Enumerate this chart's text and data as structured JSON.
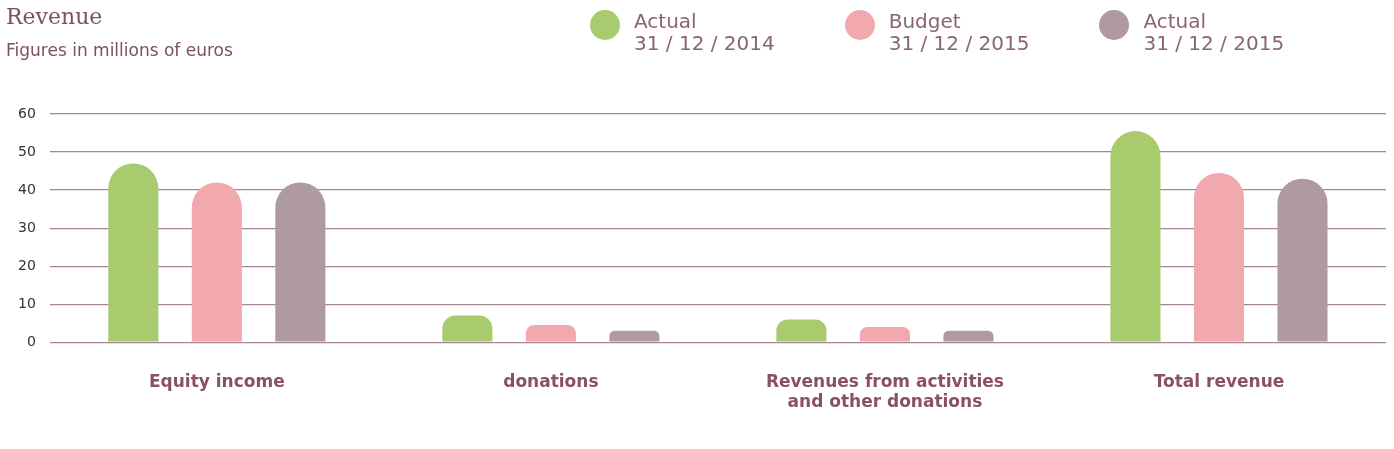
{
  "chart_data": {
    "type": "bar",
    "title": "Revenue",
    "subtitle": "Figures in millions of euros",
    "categories": [
      "Equity income",
      "donations",
      "Revenues from activities and other donations",
      "Total revenue"
    ],
    "series": [
      {
        "name": "Actual\n31 / 12 / 2014",
        "color": "#a8cb6e",
        "values": [
          47,
          7,
          6,
          55.5
        ]
      },
      {
        "name": "Budget\n31 / 12 / 2015",
        "color": "#f2a9ae",
        "values": [
          42,
          4.5,
          4,
          44.5
        ]
      },
      {
        "name": "Actual\n31 / 12 / 2015",
        "color": "#af9aa1",
        "values": [
          42,
          3,
          3,
          43
        ]
      }
    ],
    "ylim": [
      0,
      60
    ],
    "yticks": [
      0,
      10,
      20,
      30,
      40,
      50,
      60
    ],
    "grid": "y",
    "legend": "top"
  }
}
